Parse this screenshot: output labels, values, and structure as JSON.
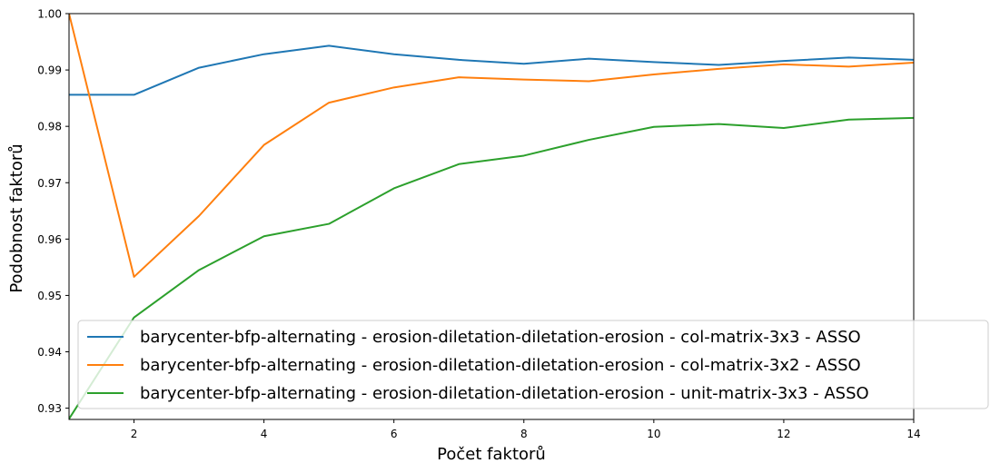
{
  "chart_data": {
    "type": "line",
    "title": "",
    "xlabel": "Počet faktorů",
    "ylabel": "Podobnost faktorů",
    "xlim": [
      1,
      14
    ],
    "ylim": [
      0.928,
      1.0
    ],
    "xticks": [
      2,
      4,
      6,
      8,
      10,
      12,
      14
    ],
    "xtick_labels": [
      "2",
      "4",
      "6",
      "8",
      "10",
      "12",
      "14"
    ],
    "yticks": [
      0.93,
      0.94,
      0.95,
      0.96,
      0.97,
      0.98,
      0.99,
      1.0
    ],
    "ytick_labels": [
      "0.93",
      "0.94",
      "0.95",
      "0.96",
      "0.97",
      "0.98",
      "0.99",
      "1.00"
    ],
    "grid": false,
    "legend_position": "lower-center",
    "x": [
      1,
      2,
      3,
      4,
      5,
      6,
      7,
      8,
      9,
      10,
      11,
      12,
      13,
      14
    ],
    "series": [
      {
        "name": "barycenter-bfp-alternating - erosion-diletation-diletation-erosion - col-matrix-3x3 - ASSO",
        "color": "#1f77b4",
        "values": [
          0.9856,
          0.9856,
          0.9904,
          0.9928,
          0.9943,
          0.9928,
          0.9918,
          0.9911,
          0.992,
          0.9914,
          0.9909,
          0.9916,
          0.9922,
          0.9918
        ]
      },
      {
        "name": "barycenter-bfp-alternating - erosion-diletation-diletation-erosion - col-matrix-3x2 - ASSO",
        "color": "#ff7f0e",
        "values": [
          1.0,
          0.9533,
          0.9641,
          0.9767,
          0.9842,
          0.9869,
          0.9887,
          0.9883,
          0.988,
          0.9892,
          0.9902,
          0.991,
          0.9906,
          0.9913
        ]
      },
      {
        "name": "barycenter-bfp-alternating - erosion-diletation-diletation-erosion - unit-matrix-3x3 - ASSO",
        "color": "#2ca02c",
        "values": [
          0.9281,
          0.9461,
          0.9545,
          0.9605,
          0.9627,
          0.969,
          0.9733,
          0.9748,
          0.9776,
          0.9799,
          0.9804,
          0.9797,
          0.9812,
          0.9815
        ]
      }
    ]
  }
}
